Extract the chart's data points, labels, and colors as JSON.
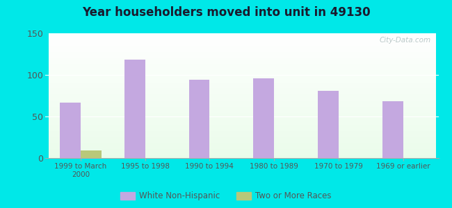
{
  "title": "Year householders moved into unit in 49130",
  "categories": [
    "1999 to March\n2000",
    "1995 to 1998",
    "1990 to 1994",
    "1980 to 1989",
    "1970 to 1979",
    "1969 or earlier"
  ],
  "white_non_hispanic": [
    67,
    118,
    94,
    96,
    81,
    68
  ],
  "two_or_more_races": [
    9,
    0,
    0,
    0,
    0,
    0
  ],
  "bar_color_white": "#c4a8e0",
  "bar_color_two": "#b8c87a",
  "ylim": [
    0,
    150
  ],
  "yticks": [
    0,
    50,
    100,
    150
  ],
  "background_color": "#00e8e8",
  "title_color": "#1a1a2e",
  "tick_color": "#555555",
  "legend_label_white": "White Non-Hispanic",
  "legend_label_two": "Two or More Races",
  "bar_width": 0.32,
  "watermark": "City-Data.com"
}
